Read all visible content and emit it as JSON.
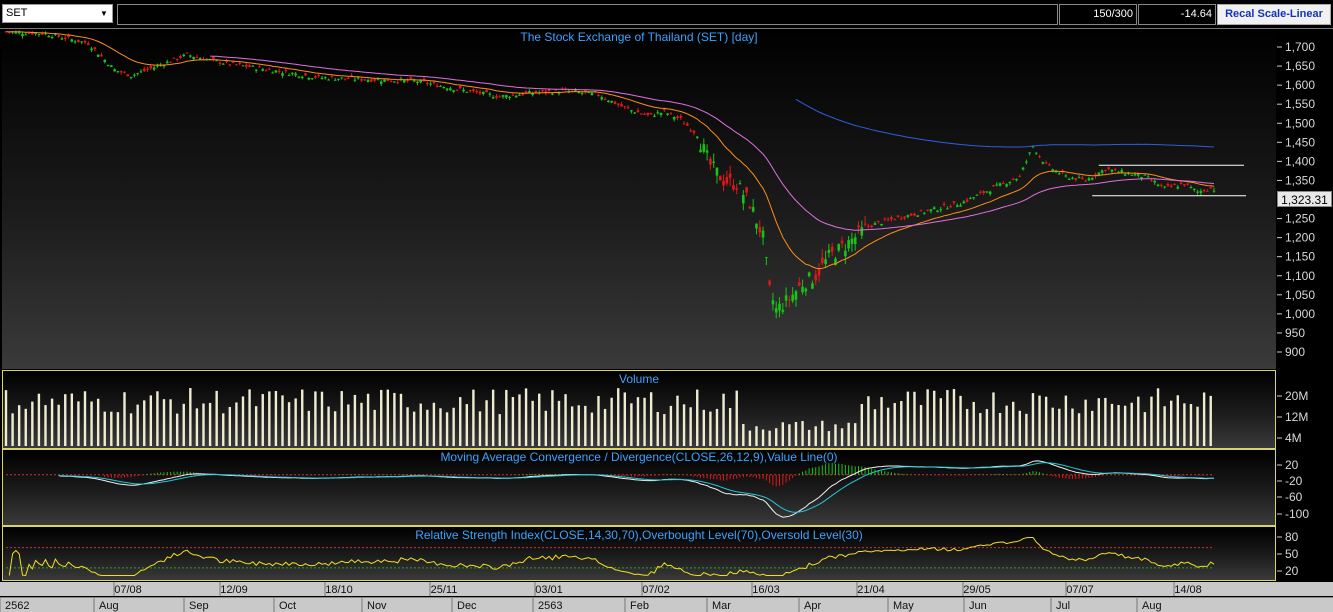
{
  "toolbar": {
    "symbol": "SET",
    "count": "150/300",
    "change": "-14.64",
    "recal_label": "Recal Scale-Linear"
  },
  "price_panel": {
    "title": "The Stock Exchange of Thailand (SET) [day]",
    "last_price": "1,323.31",
    "y_ticks": [
      "1,700",
      "1,650",
      "1,600",
      "1,550",
      "1,500",
      "1,450",
      "1,400",
      "1,350",
      "1,300",
      "1,250",
      "1,200",
      "1,150",
      "1,100",
      "1,050",
      "1,000",
      "950",
      "900"
    ]
  },
  "volume_panel": {
    "title": "Volume",
    "y_ticks": [
      "20M",
      "12M",
      "4M"
    ]
  },
  "macd_panel": {
    "title": "Moving Average Convergence / Divergence(CLOSE,26,12,9),Value Line(0)",
    "y_ticks": [
      "20",
      "-20",
      "-60",
      "-100"
    ]
  },
  "rsi_panel": {
    "title": "Relative Strength Index(CLOSE,14,30,70),Overbought Level(70),Oversold Level(30)",
    "y_ticks": [
      "80",
      "50",
      "20"
    ]
  },
  "x_axis": {
    "date_labels": [
      "07/08",
      "12/09",
      "18/10",
      "25/11",
      "03/01",
      "07/02",
      "16/03",
      "21/04",
      "29/05",
      "07/07",
      "14/08"
    ],
    "month_labels": [
      "2562",
      "Aug",
      "Sep",
      "Oct",
      "Nov",
      "Dec",
      "2563",
      "Feb",
      "Mar",
      "Apr",
      "May",
      "Jun",
      "Jul",
      "Aug"
    ]
  },
  "colors": {
    "up": "#18c418",
    "down": "#e01818",
    "ema_short": "#ff8c1a",
    "ema_long": "#e070e0",
    "ema_200": "#2f5fe0",
    "macd": "#f0f0f0",
    "signal": "#20c8d8",
    "rsi": "#f0e020",
    "volume": "#f0ecd2"
  },
  "chart_data": {
    "type": "candlestick",
    "series_names": [
      "price",
      "ema_short",
      "ema_long",
      "ema_200",
      "volume",
      "macd",
      "signal",
      "rsi"
    ],
    "ylim": [
      880,
      1720
    ],
    "last_value": 1323.31,
    "x_dates": [
      "07/08",
      "12/09",
      "18/10",
      "25/11",
      "03/01",
      "07/02",
      "16/03",
      "21/04",
      "29/05",
      "07/07",
      "14/08"
    ],
    "close_keypoints": [
      [
        0,
        1740
      ],
      [
        12,
        1735
      ],
      [
        25,
        1710
      ],
      [
        33,
        1640
      ],
      [
        38,
        1625
      ],
      [
        46,
        1650
      ],
      [
        55,
        1680
      ],
      [
        65,
        1660
      ],
      [
        80,
        1640
      ],
      [
        95,
        1620
      ],
      [
        110,
        1615
      ],
      [
        125,
        1610
      ],
      [
        140,
        1585
      ],
      [
        150,
        1570
      ],
      [
        160,
        1580
      ],
      [
        170,
        1585
      ],
      [
        180,
        1575
      ],
      [
        188,
        1540
      ],
      [
        195,
        1520
      ],
      [
        200,
        1530
      ],
      [
        205,
        1510
      ],
      [
        210,
        1470
      ],
      [
        214,
        1390
      ],
      [
        218,
        1350
      ],
      [
        222,
        1340
      ],
      [
        226,
        1290
      ],
      [
        230,
        1200
      ],
      [
        232,
        1060
      ],
      [
        234,
        1010
      ],
      [
        238,
        1040
      ],
      [
        242,
        1080
      ],
      [
        246,
        1100
      ],
      [
        250,
        1150
      ],
      [
        255,
        1180
      ],
      [
        262,
        1230
      ],
      [
        270,
        1250
      ],
      [
        280,
        1270
      ],
      [
        290,
        1290
      ],
      [
        300,
        1330
      ],
      [
        308,
        1360
      ],
      [
        312,
        1440
      ],
      [
        316,
        1390
      ],
      [
        322,
        1360
      ],
      [
        328,
        1350
      ],
      [
        334,
        1380
      ],
      [
        340,
        1370
      ],
      [
        346,
        1360
      ],
      [
        352,
        1330
      ],
      [
        358,
        1340
      ],
      [
        362,
        1320
      ],
      [
        366,
        1330
      ]
    ],
    "resistance_level": 1390,
    "support_level": 1310,
    "volume_range_m": [
      0,
      26
    ],
    "macd_range": [
      -120,
      40
    ],
    "rsi_range": [
      10,
      95
    ],
    "rsi_overbought": 70,
    "rsi_oversold": 30
  }
}
